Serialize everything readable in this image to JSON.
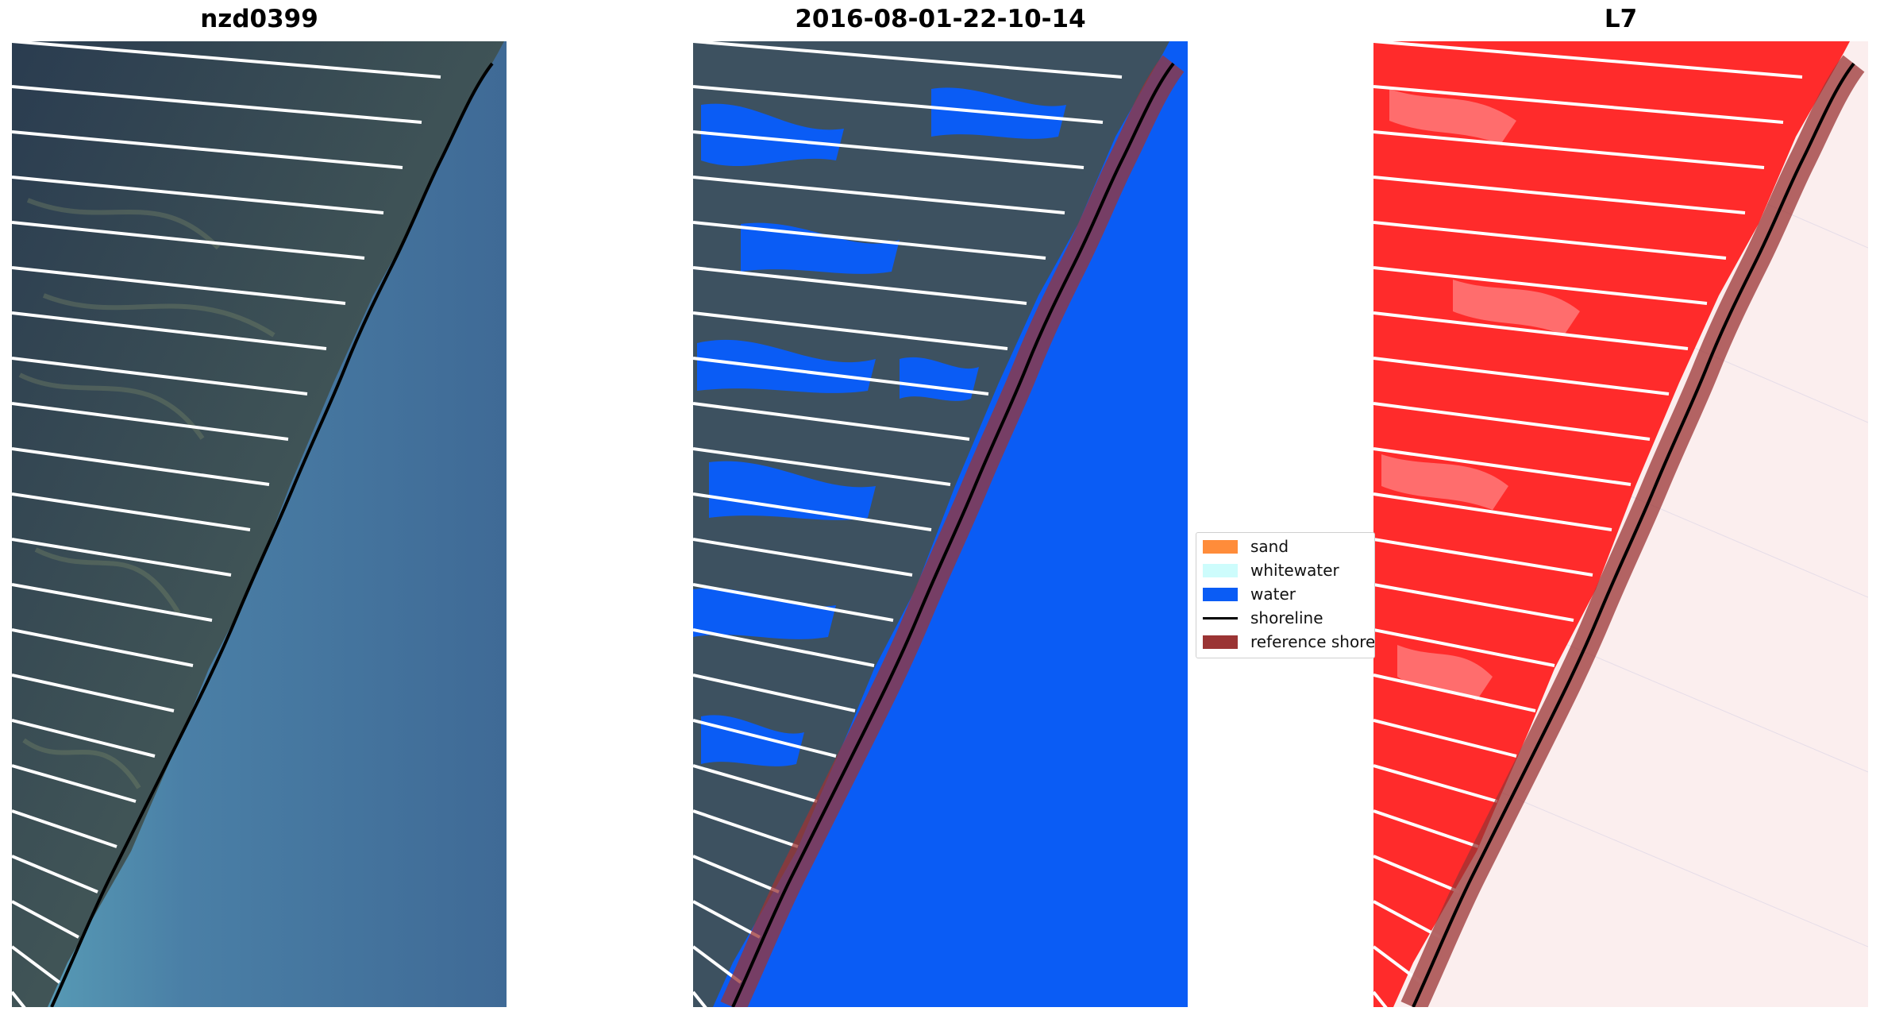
{
  "panels": [
    {
      "title": "nzd0399"
    },
    {
      "title": "2016-08-01-22-10-14"
    },
    {
      "title": "L7"
    }
  ],
  "legend": {
    "items": [
      {
        "label": "sand",
        "color": "#ff8c3a",
        "kind": "patch"
      },
      {
        "label": "whitewater",
        "color": "#cdfcfc",
        "kind": "patch"
      },
      {
        "label": "water",
        "color": "#0a5cf5",
        "kind": "patch"
      },
      {
        "label": "shoreline",
        "color": "#000000",
        "kind": "line"
      },
      {
        "label": "reference shoreline buffer",
        "color": "#9b3434",
        "kind": "patch"
      }
    ]
  },
  "colors": {
    "land_dark": "#2d3f52",
    "land_mid": "#4b5d5c",
    "sea_near": "#4f8fb0",
    "sea_far": "#3f6a96",
    "classified_water": "#0a5cf5",
    "buffer": "#9b3434",
    "index_land": "#ff2b2b",
    "index_sea": "#fbeeee",
    "scanline": "#ffffff"
  }
}
